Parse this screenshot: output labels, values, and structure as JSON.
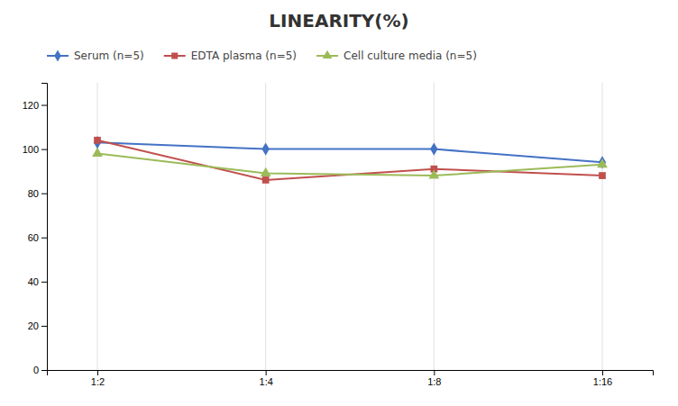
{
  "chart_data": {
    "type": "line",
    "title": "LINEARITY(%)",
    "categories": [
      "1:2",
      "1:4",
      "1:8",
      "1:16"
    ],
    "series": [
      {
        "name": "Serum (n=5)",
        "color": "#4472C4",
        "marker": "diamond",
        "values": [
          103,
          100,
          100,
          94
        ]
      },
      {
        "name": "EDTA plasma (n=5)",
        "color": "#C0504D",
        "marker": "square",
        "values": [
          104,
          86,
          91,
          88
        ]
      },
      {
        "name": "Cell culture media (n=5)",
        "color": "#9BBB59",
        "marker": "triangle",
        "values": [
          98,
          89,
          88,
          93
        ]
      }
    ],
    "ylim": [
      0,
      130
    ],
    "yticks": [
      0,
      20,
      40,
      60,
      80,
      100,
      120
    ],
    "grid": true,
    "legend": "top-left"
  }
}
